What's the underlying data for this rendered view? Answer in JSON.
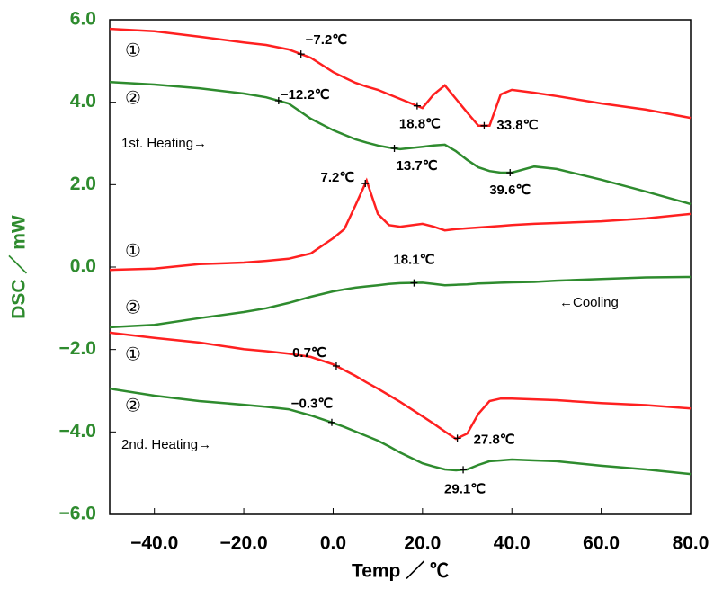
{
  "chart_data": {
    "type": "line",
    "xlabel": "Temp ／ ℃",
    "ylabel": "DSC ／ mW",
    "xlim": [
      -50,
      80
    ],
    "ylim": [
      -6,
      6
    ],
    "xticks": [
      {
        "value": -40,
        "label": "−40.0"
      },
      {
        "value": -20,
        "label": "−20.0"
      },
      {
        "value": 0,
        "label": "0.0"
      },
      {
        "value": 20,
        "label": "20.0"
      },
      {
        "value": 40,
        "label": "40.0"
      },
      {
        "value": 60,
        "label": "60.0"
      },
      {
        "value": 80,
        "label": "80.0"
      }
    ],
    "yticks": [
      {
        "value": 6,
        "label": "6.0"
      },
      {
        "value": 4,
        "label": "4.0"
      },
      {
        "value": 2,
        "label": "2.0"
      },
      {
        "value": 0,
        "label": "0.0"
      },
      {
        "value": -2,
        "label": "−2.0"
      },
      {
        "value": -4,
        "label": "−4.0"
      },
      {
        "value": -6,
        "label": "−6.0"
      }
    ],
    "x": [
      -50,
      -40,
      -30,
      -20,
      -15,
      -10,
      -5,
      0,
      2.5,
      5,
      7.5,
      10,
      12.5,
      15,
      20,
      22.5,
      25,
      27.5,
      30,
      32.5,
      35,
      37.5,
      40,
      45,
      50,
      60,
      70,
      80
    ],
    "annotations": [
      "1st. Heating→",
      "←Cooling",
      "2nd. Heating→"
    ],
    "series": [
      {
        "name": "①",
        "color": "#ff2020",
        "values": [
          5.78,
          5.72,
          5.59,
          5.45,
          5.39,
          5.28,
          5.08,
          4.73,
          4.6,
          4.47,
          4.38,
          4.3,
          4.19,
          4.08,
          3.86,
          4.19,
          4.41,
          4.08,
          3.75,
          3.43,
          3.43,
          4.19,
          4.3,
          4.23,
          4.15,
          3.97,
          3.82,
          3.62
        ],
        "points": [
          {
            "x": -7.2,
            "label": "−7.2℃"
          },
          {
            "x": 18.8,
            "label": "18.8℃"
          },
          {
            "x": 33.8,
            "label": "33.8℃"
          }
        ]
      },
      {
        "name": "②",
        "color": "#2e8b2e",
        "values": [
          4.49,
          4.43,
          4.34,
          4.21,
          4.12,
          3.97,
          3.6,
          3.32,
          3.21,
          3.1,
          3.02,
          2.95,
          2.9,
          2.86,
          2.92,
          2.95,
          2.97,
          2.81,
          2.6,
          2.42,
          2.33,
          2.29,
          2.29,
          2.44,
          2.38,
          2.12,
          1.83,
          1.53
        ],
        "points": [
          {
            "x": -12.2,
            "label": "−12.2℃"
          },
          {
            "x": 13.7,
            "label": "13.7℃"
          },
          {
            "x": 39.6,
            "label": "39.6℃"
          }
        ]
      },
      {
        "name": "①",
        "color": "#ff2020",
        "values": [
          -0.07,
          -0.04,
          0.07,
          0.11,
          0.15,
          0.2,
          0.33,
          0.7,
          0.92,
          1.5,
          2.1,
          1.29,
          1.02,
          0.98,
          1.05,
          0.98,
          0.89,
          0.92,
          0.94,
          0.96,
          0.98,
          1.0,
          1.02,
          1.05,
          1.07,
          1.11,
          1.18,
          1.29
        ],
        "points": [
          {
            "x": 7.2,
            "label": "7.2℃"
          }
        ]
      },
      {
        "name": "②",
        "color": "#2e8b2e",
        "values": [
          -1.46,
          -1.4,
          -1.24,
          -1.09,
          -1.0,
          -0.87,
          -0.72,
          -0.59,
          -0.54,
          -0.5,
          -0.47,
          -0.44,
          -0.41,
          -0.39,
          -0.38,
          -0.41,
          -0.44,
          -0.43,
          -0.42,
          -0.4,
          -0.39,
          -0.38,
          -0.37,
          -0.36,
          -0.33,
          -0.29,
          -0.25,
          -0.24
        ],
        "points": [
          {
            "x": 18.1,
            "label": "18.1℃"
          }
        ]
      },
      {
        "name": "①",
        "color": "#ff2020",
        "values": [
          -1.59,
          -1.72,
          -1.83,
          -1.99,
          -2.04,
          -2.1,
          -2.18,
          -2.36,
          -2.5,
          -2.64,
          -2.8,
          -2.95,
          -3.11,
          -3.27,
          -3.62,
          -3.8,
          -3.99,
          -4.17,
          -4.04,
          -3.56,
          -3.25,
          -3.19,
          -3.19,
          -3.21,
          -3.23,
          -3.3,
          -3.35,
          -3.43
        ],
        "points": [
          {
            "x": 0.7,
            "label": "0.7℃"
          },
          {
            "x": 27.8,
            "label": "27.8℃"
          }
        ]
      },
      {
        "name": "②",
        "color": "#2e8b2e",
        "values": [
          -2.95,
          -3.12,
          -3.25,
          -3.34,
          -3.39,
          -3.45,
          -3.6,
          -3.78,
          -3.88,
          -3.99,
          -4.1,
          -4.21,
          -4.35,
          -4.5,
          -4.76,
          -4.84,
          -4.91,
          -4.93,
          -4.91,
          -4.8,
          -4.71,
          -4.69,
          -4.67,
          -4.69,
          -4.71,
          -4.82,
          -4.91,
          -5.02
        ],
        "points": [
          {
            "x": -0.3,
            "label": "−0.3℃"
          },
          {
            "x": 29.1,
            "label": "29.1℃"
          }
        ]
      }
    ]
  }
}
